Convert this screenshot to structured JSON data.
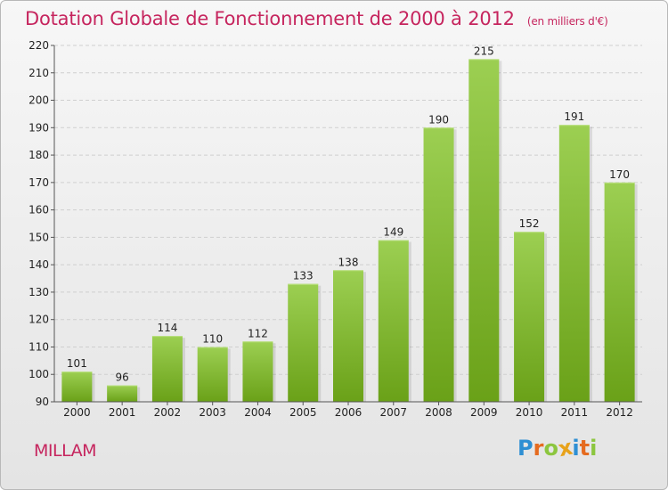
{
  "header": {
    "title": "Dotation Globale de Fonctionnement de 2000 à 2012",
    "subtitle": "(en milliers d'€)"
  },
  "footer": {
    "place": "MILLAM",
    "logo_letters": [
      {
        "ch": "P",
        "color": "#2e8fd3"
      },
      {
        "ch": "r",
        "color": "#e56b1f"
      },
      {
        "ch": "o",
        "color": "#8cc63f"
      },
      {
        "ch": "x",
        "color": "#e8a21a"
      },
      {
        "ch": "i",
        "color": "#2e8fd3"
      },
      {
        "ch": "t",
        "color": "#e56b1f"
      },
      {
        "ch": "i",
        "color": "#8cc63f"
      }
    ]
  },
  "colors": {
    "accent": "#c6255e",
    "bar_light": "#9ccf52",
    "bar_dark": "#6aa118"
  },
  "chart_data": {
    "type": "bar",
    "title": "Dotation Globale de Fonctionnement de 2000 à 2012",
    "subtitle": "(en milliers d'€)",
    "categories": [
      "2000",
      "2001",
      "2002",
      "2003",
      "2004",
      "2005",
      "2006",
      "2007",
      "2008",
      "2009",
      "2010",
      "2011",
      "2012"
    ],
    "values": [
      101,
      96,
      114,
      110,
      112,
      133,
      138,
      149,
      190,
      215,
      152,
      191,
      170
    ],
    "ylim": [
      90,
      220
    ],
    "yticks": [
      90,
      100,
      110,
      120,
      130,
      140,
      150,
      160,
      170,
      180,
      190,
      200,
      210,
      220
    ],
    "grid": true,
    "legend": "none"
  }
}
